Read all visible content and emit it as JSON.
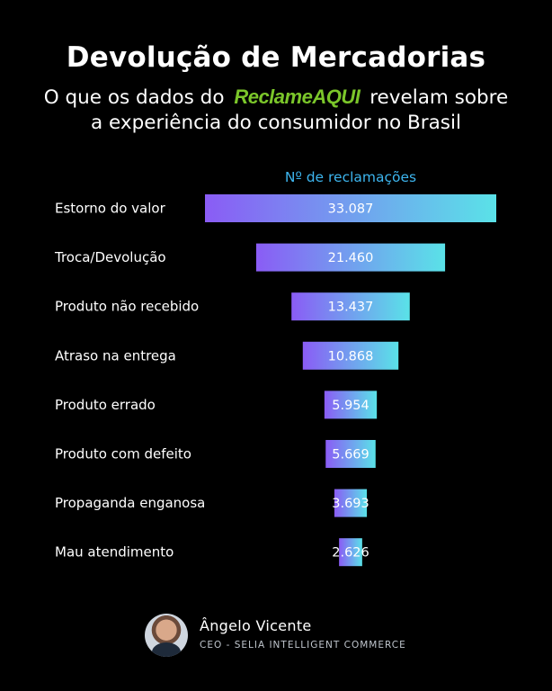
{
  "header": {
    "title": "Devolução de Mercadorias",
    "subtitle_pre": "O que os dados do",
    "brand_a": "Reclame",
    "brand_b": "AQUI",
    "subtitle_post": "revelam sobre",
    "subtitle_line2": "a experiência do consumidor no Brasil"
  },
  "colors": {
    "bar_start": "#8a5cf5",
    "bar_end": "#5ae2e8",
    "series_label": "#3db5ee",
    "brand": "#7bc62a"
  },
  "chart_data": {
    "type": "bar",
    "orientation": "horizontal",
    "layout": "funnel-centered",
    "series": [
      {
        "name": "Nº de reclamações",
        "values": [
          33087,
          21460,
          13437,
          10868,
          5954,
          5669,
          3693,
          2626
        ],
        "labels": [
          "33.087",
          "21.460",
          "13.437",
          "10.868",
          "5.954",
          "5.669",
          "3.693",
          "2.626"
        ]
      }
    ],
    "categories": [
      "Estorno do valor",
      "Troca/Devolução",
      "Produto não recebido",
      "Atraso na entrega",
      "Produto errado",
      "Produto com defeito",
      "Propaganda enganosa",
      "Mau atendimento"
    ],
    "title": "Devolução de Mercadorias",
    "xlabel": "",
    "ylabel": "",
    "grid": false
  },
  "author": {
    "name": "Ângelo Vicente",
    "role": "CEO - SELIA INTELLIGENT COMMERCE"
  }
}
